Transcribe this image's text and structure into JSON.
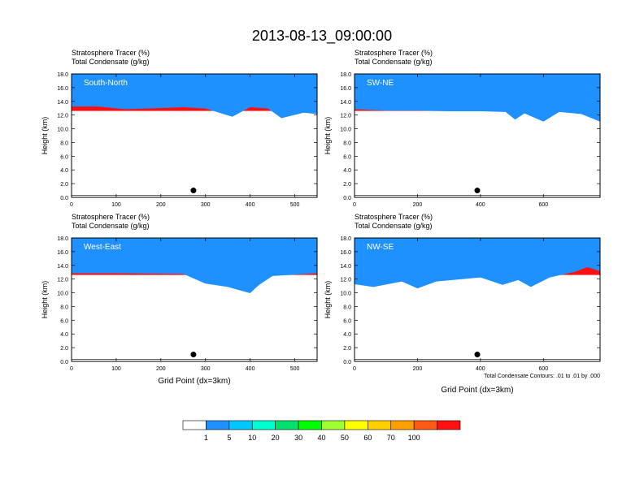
{
  "title": "2013-08-13_09:00:00",
  "chart_data": {
    "type": "heatmap",
    "panels": [
      {
        "id": "south-north",
        "label": "South-North",
        "header_line1": "Stratosphere Tracer   (%)",
        "header_line2": "Total Condensate   (g/kg)",
        "ylabel": "Height (km)",
        "xlabel": "",
        "xlim": [
          0,
          550
        ],
        "ylim": [
          0,
          18
        ],
        "xticks": [
          "0",
          "100",
          "200",
          "300",
          "400",
          "500"
        ],
        "xtick_values": [
          0,
          100,
          200,
          300,
          400,
          500
        ],
        "yticks": [
          "0.0",
          "2.0",
          "4.0",
          "6.0",
          "8.0",
          "10.0",
          "12.0",
          "14.0",
          "16.0",
          "18.0"
        ],
        "tropopause_km": [
          [
            0,
            13.6
          ],
          [
            60,
            13.6
          ],
          [
            120,
            13.2
          ],
          [
            170,
            13.3
          ],
          [
            250,
            13.5
          ],
          [
            300,
            13.3
          ],
          [
            360,
            12.1
          ],
          [
            400,
            13.5
          ],
          [
            440,
            13.3
          ],
          [
            470,
            11.9
          ],
          [
            520,
            12.7
          ],
          [
            550,
            12.5
          ]
        ],
        "marker": {
          "x": 273,
          "y": 1.0
        },
        "contour_note": ""
      },
      {
        "id": "sw-ne",
        "label": "SW-NE",
        "header_line1": "Stratosphere Tracer   (%)",
        "header_line2": "Total Condensate   (g/kg)",
        "ylabel": "Height (km)",
        "xlabel": "",
        "xlim": [
          0,
          780
        ],
        "ylim": [
          0,
          18
        ],
        "xticks": [
          "0",
          "200",
          "400",
          "600"
        ],
        "xtick_values": [
          0,
          200,
          400,
          600
        ],
        "yticks": [
          "0.0",
          "2.0",
          "4.0",
          "6.0",
          "8.0",
          "10.0",
          "12.0",
          "14.0",
          "16.0",
          "18.0"
        ],
        "tropopause_km": [
          [
            0,
            13.2
          ],
          [
            100,
            13.0
          ],
          [
            200,
            13.0
          ],
          [
            300,
            12.9
          ],
          [
            400,
            12.9
          ],
          [
            480,
            12.8
          ],
          [
            510,
            11.7
          ],
          [
            540,
            12.6
          ],
          [
            600,
            11.4
          ],
          [
            650,
            12.8
          ],
          [
            720,
            12.5
          ],
          [
            780,
            11.4
          ]
        ],
        "marker": {
          "x": 390,
          "y": 1.0
        },
        "contour_note": ""
      },
      {
        "id": "west-east",
        "label": "West-East",
        "header_line1": "Stratosphere Tracer   (%)",
        "header_line2": "Total Condensate   (g/kg)",
        "ylabel": "Height (km)",
        "xlabel": "Grid Point (dx=3km)",
        "xlim": [
          0,
          550
        ],
        "ylim": [
          0,
          18
        ],
        "xticks": [
          "0",
          "100",
          "200",
          "300",
          "400",
          "500"
        ],
        "xtick_values": [
          0,
          100,
          200,
          300,
          400,
          500
        ],
        "yticks": [
          "0.0",
          "2.0",
          "4.0",
          "6.0",
          "8.0",
          "10.0",
          "12.0",
          "14.0",
          "16.0",
          "18.0"
        ],
        "tropopause_km": [
          [
            0,
            13.2
          ],
          [
            100,
            13.2
          ],
          [
            250,
            13.1
          ],
          [
            300,
            11.7
          ],
          [
            350,
            11.2
          ],
          [
            400,
            10.3
          ],
          [
            420,
            11.5
          ],
          [
            450,
            12.8
          ],
          [
            550,
            13.2
          ]
        ],
        "marker": {
          "x": 273,
          "y": 1.0
        },
        "contour_note": ""
      },
      {
        "id": "nw-se",
        "label": "NW-SE",
        "header_line1": "Stratosphere Tracer   (%)",
        "header_line2": "Total Condensate   (g/kg)",
        "ylabel": "Height (km)",
        "xlabel": "Grid Point (dx=3km)",
        "xlim": [
          0,
          780
        ],
        "ylim": [
          0,
          18
        ],
        "xticks": [
          "0",
          "200",
          "400",
          "600"
        ],
        "xtick_values": [
          0,
          200,
          400,
          600
        ],
        "yticks": [
          "0.0",
          "2.0",
          "4.0",
          "6.0",
          "8.0",
          "10.0",
          "12.0",
          "14.0",
          "16.0",
          "18.0"
        ],
        "tropopause_km": [
          [
            0,
            11.6
          ],
          [
            60,
            11.2
          ],
          [
            150,
            12.0
          ],
          [
            200,
            11.0
          ],
          [
            260,
            12.0
          ],
          [
            330,
            12.3
          ],
          [
            400,
            12.6
          ],
          [
            470,
            11.5
          ],
          [
            520,
            12.2
          ],
          [
            560,
            11.2
          ],
          [
            620,
            12.6
          ],
          [
            700,
            13.4
          ],
          [
            740,
            14.1
          ],
          [
            780,
            13.5
          ]
        ],
        "marker": {
          "x": 390,
          "y": 1.0
        },
        "contour_note": "Total Condensate Contours: .01 to .01 by .000"
      }
    ],
    "colorbar": {
      "labels": [
        "1",
        "5",
        "10",
        "20",
        "30",
        "40",
        "50",
        "60",
        "70",
        "100"
      ],
      "colors": [
        "#ffffff",
        "#1e90ff",
        "#00c8ff",
        "#00ffd0",
        "#00e06e",
        "#00ff00",
        "#a0ff30",
        "#ffff00",
        "#ffd000",
        "#ffa000",
        "#ff5a14",
        "#ff1010"
      ]
    }
  }
}
